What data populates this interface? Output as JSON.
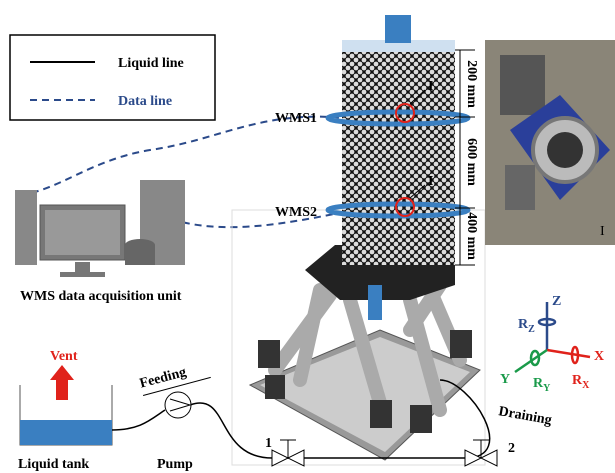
{
  "legend": {
    "liquid_line": "Liquid line",
    "data_line": "Data line"
  },
  "column": {
    "sensor_1": "WMS1",
    "sensor_2": "WMS2",
    "detail_mark_1": "I",
    "detail_mark_2": "I",
    "dimensions": [
      "200 mm",
      "600 mm",
      "400 mm"
    ]
  },
  "photo": {
    "label": "I"
  },
  "acquisition": {
    "label": "WMS data acquisition unit"
  },
  "loop": {
    "vent": "Vent",
    "feeding": "Feeding",
    "pump": "Pump",
    "tank": "Liquid tank",
    "valve_1": "1",
    "valve_2": "2",
    "draining": "Draining"
  },
  "axes": {
    "z": "Z",
    "rz": {
      "base": "R",
      "sub": "Z"
    },
    "x": "X",
    "rx": {
      "base": "R",
      "sub": "X"
    },
    "y": "Y",
    "ry": {
      "base": "R",
      "sub": "Y"
    }
  }
}
